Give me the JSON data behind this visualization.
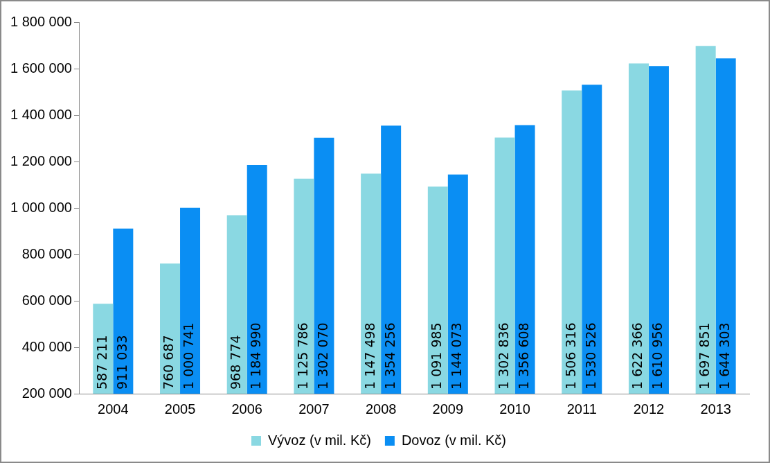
{
  "chart_data": {
    "type": "bar",
    "categories": [
      "2004",
      "2005",
      "2006",
      "2007",
      "2008",
      "2009",
      "2010",
      "2011",
      "2012",
      "2013"
    ],
    "series": [
      {
        "name": "Vývoz (v mil. Kč)",
        "color": "#8ad8e2",
        "values": [
          587211,
          760687,
          968774,
          1125786,
          1147498,
          1091985,
          1302836,
          1506316,
          1622366,
          1697851
        ],
        "value_labels": [
          "587 211",
          "760 687",
          "968 774",
          "1 125 786",
          "1 147 498",
          "1 091 985",
          "1 302 836",
          "1 506 316",
          "1 622 366",
          "1 697 851"
        ]
      },
      {
        "name": "Dovoz (v mil. Kč)",
        "color": "#0a8ef3",
        "values": [
          911033,
          1000741,
          1184990,
          1302070,
          1354256,
          1144073,
          1356608,
          1530526,
          1610956,
          1644303
        ],
        "value_labels": [
          "911 033",
          "1 000 741",
          "1 184 990",
          "1 302 070",
          "1 354 256",
          "1 144 073",
          "1 356 608",
          "1 530 526",
          "1 610 956",
          "1 644 303"
        ]
      }
    ],
    "ylim": [
      200000,
      1800000
    ],
    "yticks": [
      {
        "value": 200000,
        "label": "200 000"
      },
      {
        "value": 400000,
        "label": "400 000"
      },
      {
        "value": 600000,
        "label": "600 000"
      },
      {
        "value": 800000,
        "label": "800 000"
      },
      {
        "value": 1000000,
        "label": "1 000 000"
      },
      {
        "value": 1200000,
        "label": "1 200 000"
      },
      {
        "value": 1400000,
        "label": "1 400 000"
      },
      {
        "value": 1600000,
        "label": "1 600 000"
      },
      {
        "value": 1800000,
        "label": "1 800 000"
      }
    ],
    "grid": false,
    "legend": "bottom"
  }
}
